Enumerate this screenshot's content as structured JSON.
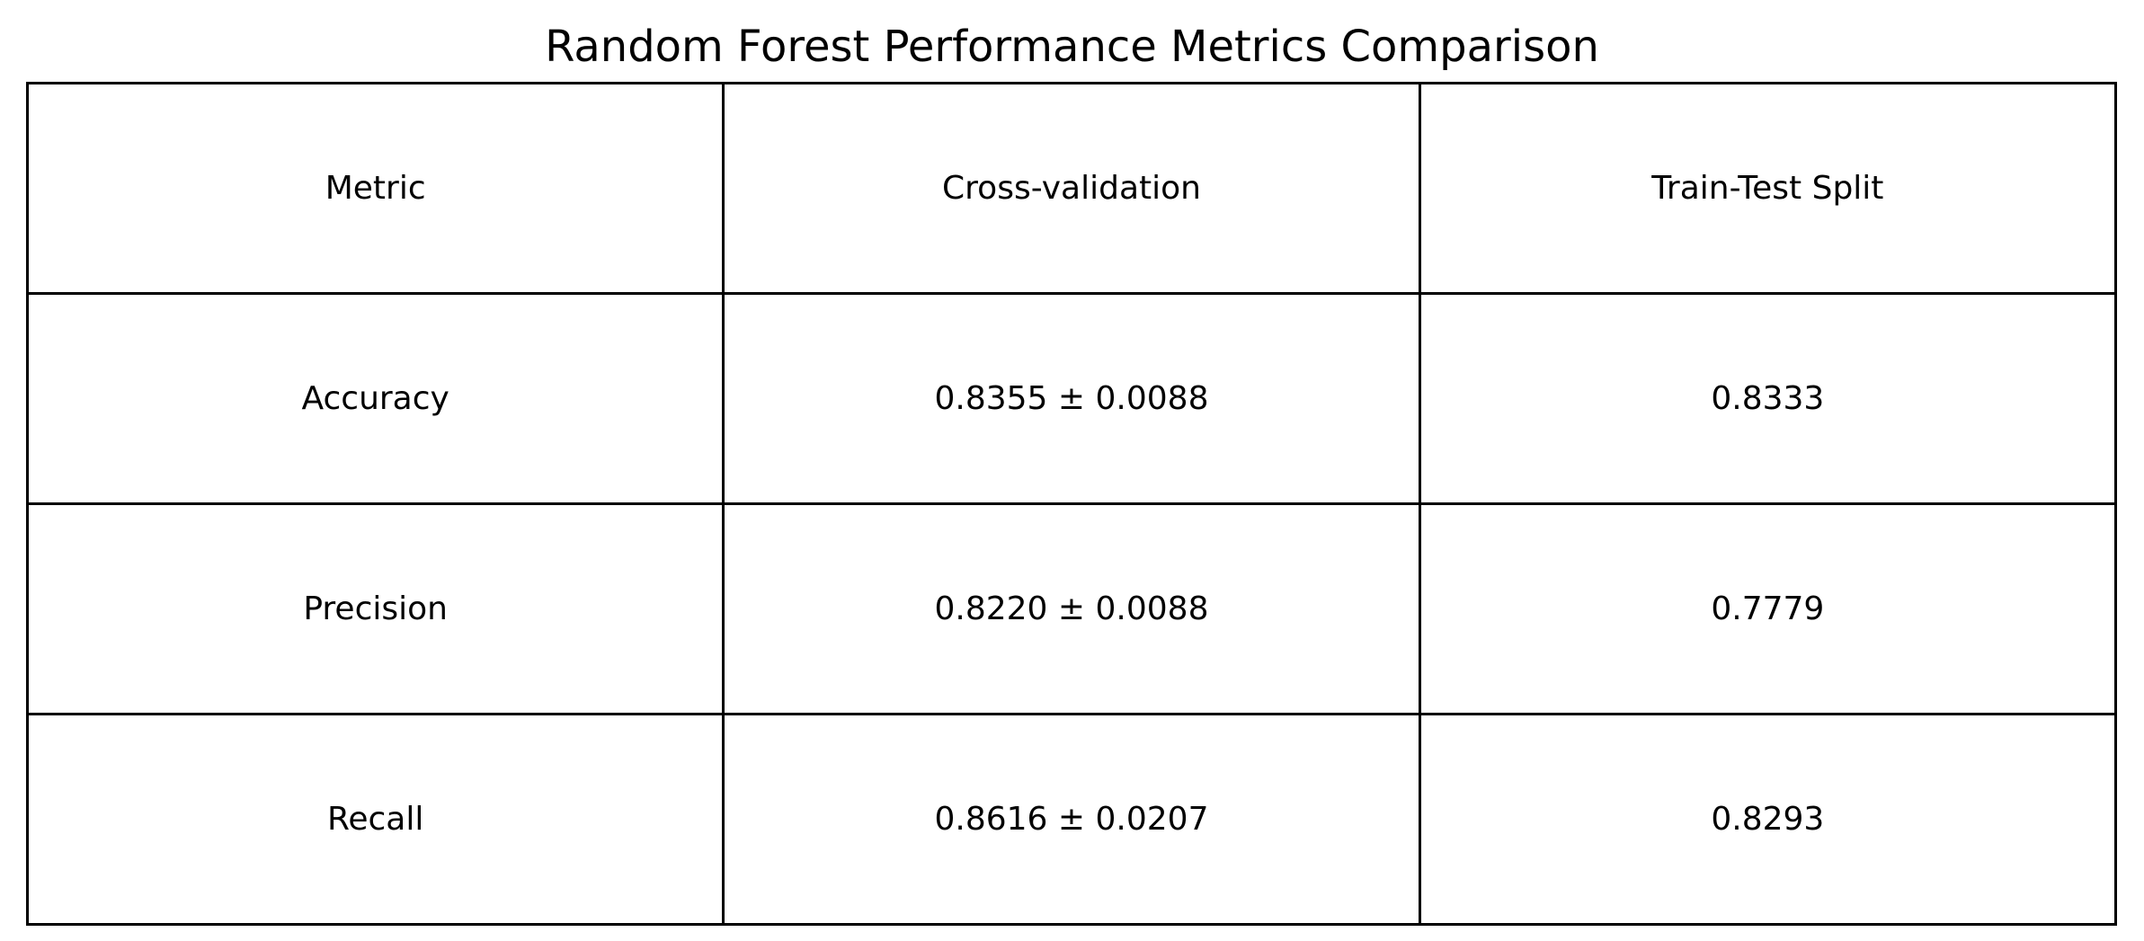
{
  "chart_data": {
    "type": "table",
    "title": "Random Forest Performance Metrics Comparison",
    "columns": [
      "Metric",
      "Cross-validation",
      "Train-Test Split"
    ],
    "rows": [
      [
        "Accuracy",
        "0.8355 ± 0.0088",
        "0.8333"
      ],
      [
        "Precision",
        "0.8220 ± 0.0088",
        "0.7779"
      ],
      [
        "Recall",
        "0.8616 ± 0.0207",
        "0.8293"
      ]
    ],
    "cross_validation_mean": [
      0.8355,
      0.822,
      0.8616
    ],
    "cross_validation_std": [
      0.0088,
      0.0088,
      0.0207
    ],
    "train_test_split": [
      0.8333,
      0.7779,
      0.8293
    ]
  }
}
